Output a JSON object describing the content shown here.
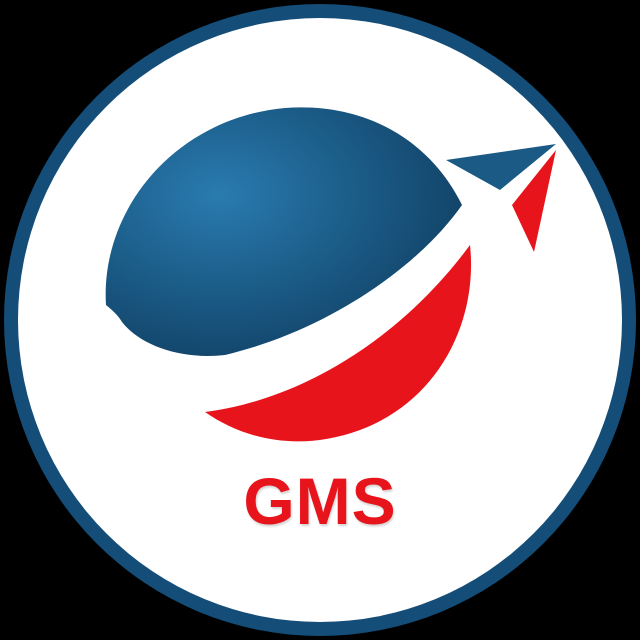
{
  "logo": {
    "brand_text": "GMS",
    "icon": "globe-with-paper-plane-icon",
    "colors": {
      "background": "#000000",
      "ring": "#134d78",
      "disc": "#ffffff",
      "globe_blue": "#1a5a85",
      "globe_blue_light": "#2a7bb0",
      "accent_red": "#e8141c",
      "text_red": "#e8141c"
    }
  }
}
